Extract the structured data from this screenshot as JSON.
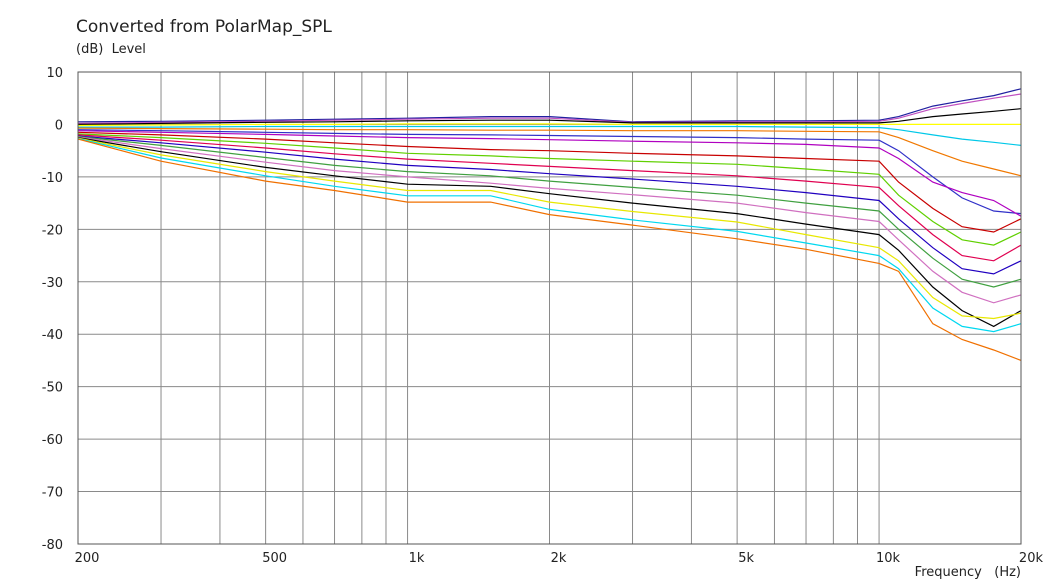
{
  "chart_data": {
    "type": "line",
    "title": "Converted from PolarMap_SPL",
    "ylabel_unit": "(dB)",
    "ylabel": "Level",
    "xlabel": "Frequency",
    "xlabel_unit": "(Hz)",
    "xscale": "log",
    "xlim": [
      200,
      20000
    ],
    "ylim": [
      -80,
      10
    ],
    "yticks": [
      10,
      0,
      -10,
      -20,
      -30,
      -40,
      -50,
      -60,
      -70,
      -80
    ],
    "yticklabels": [
      "10",
      "0",
      "-10",
      "-20",
      "-30",
      "-40",
      "-50",
      "-60",
      "-70",
      "-80"
    ],
    "xticks": [
      200,
      500,
      1000,
      2000,
      5000,
      10000,
      20000
    ],
    "xticklabels": [
      "200",
      "500",
      "1k",
      "2k",
      "5k",
      "10k",
      "20k"
    ],
    "xgrid_minor": [
      300,
      400,
      600,
      700,
      800,
      900,
      3000,
      4000,
      6000,
      7000,
      8000,
      9000
    ],
    "grid": true,
    "x": [
      200,
      300,
      500,
      700,
      1000,
      1500,
      2000,
      3000,
      5000,
      7000,
      10000,
      11000,
      13000,
      15000,
      17500,
      20000
    ],
    "series": [
      {
        "color": "#2020a0",
        "values": [
          0.5,
          0.6,
          0.8,
          1.0,
          1.2,
          1.5,
          1.5,
          0.5,
          0.7,
          0.7,
          0.8,
          1.5,
          3.5,
          4.5,
          5.5,
          6.8
        ]
      },
      {
        "color": "#c050c0",
        "values": [
          0.2,
          0.4,
          0.6,
          0.8,
          1.0,
          1.2,
          1.2,
          0.4,
          0.5,
          0.5,
          0.6,
          1.2,
          3.0,
          4.0,
          5.0,
          5.8
        ]
      },
      {
        "color": "#000000",
        "values": [
          0.0,
          0.2,
          0.4,
          0.5,
          0.7,
          0.8,
          0.8,
          0.3,
          0.3,
          0.3,
          0.3,
          0.6,
          1.5,
          2.0,
          2.5,
          3.0
        ]
      },
      {
        "color": "#ffff00",
        "values": [
          -0.2,
          -0.1,
          0.0,
          0.0,
          0.1,
          0.1,
          0.1,
          0.0,
          0.0,
          0.0,
          0.0,
          0.0,
          0.0,
          0.0,
          0.0,
          0.0
        ]
      },
      {
        "color": "#00c8e8",
        "values": [
          -0.5,
          -0.5,
          -0.4,
          -0.4,
          -0.4,
          -0.4,
          -0.4,
          -0.4,
          -0.4,
          -0.5,
          -0.6,
          -1.0,
          -2.0,
          -2.8,
          -3.4,
          -4.0
        ]
      },
      {
        "color": "#f07800",
        "values": [
          -0.7,
          -0.8,
          -0.9,
          -1.0,
          -1.0,
          -1.1,
          -1.1,
          -1.2,
          -1.2,
          -1.3,
          -1.4,
          -2.5,
          -5.0,
          -7.0,
          -8.5,
          -9.8
        ]
      },
      {
        "color": "#3030c8",
        "values": [
          -1.0,
          -1.2,
          -1.5,
          -1.7,
          -1.9,
          -2.0,
          -2.1,
          -2.3,
          -2.5,
          -2.8,
          -3.0,
          -5.0,
          -10.0,
          -14.0,
          -16.5,
          -17.0
        ]
      },
      {
        "color": "#b000c0",
        "values": [
          -1.2,
          -1.5,
          -1.9,
          -2.2,
          -2.5,
          -2.7,
          -2.9,
          -3.2,
          -3.5,
          -3.8,
          -4.5,
          -6.5,
          -11.0,
          -13.0,
          -14.5,
          -17.5
        ]
      },
      {
        "color": "#c80000",
        "values": [
          -1.5,
          -2.0,
          -2.8,
          -3.5,
          -4.2,
          -4.8,
          -5.0,
          -5.5,
          -6.0,
          -6.5,
          -7.0,
          -11.0,
          -16.0,
          -19.5,
          -20.5,
          -18.0
        ]
      },
      {
        "color": "#60d000",
        "values": [
          -1.8,
          -2.5,
          -3.6,
          -4.5,
          -5.5,
          -6.0,
          -6.5,
          -7.0,
          -7.6,
          -8.5,
          -9.5,
          -13.5,
          -18.5,
          -22.0,
          -23.0,
          -20.5
        ]
      },
      {
        "color": "#e00050",
        "values": [
          -2.0,
          -3.0,
          -4.5,
          -5.6,
          -6.6,
          -7.4,
          -8.0,
          -8.8,
          -9.8,
          -10.8,
          -12.0,
          -15.5,
          -21.0,
          -25.0,
          -26.0,
          -23.0
        ]
      },
      {
        "color": "#2000c0",
        "values": [
          -2.2,
          -3.5,
          -5.3,
          -6.6,
          -7.8,
          -8.6,
          -9.4,
          -10.4,
          -11.8,
          -13.0,
          -14.5,
          -18.0,
          -23.5,
          -27.5,
          -28.5,
          -26.0
        ]
      },
      {
        "color": "#40a040",
        "values": [
          -2.3,
          -4.0,
          -6.3,
          -7.8,
          -9.0,
          -9.8,
          -10.8,
          -12.0,
          -13.5,
          -15.0,
          -16.5,
          -20.0,
          -25.5,
          -29.5,
          -31.0,
          -29.5
        ]
      },
      {
        "color": "#d070c0",
        "values": [
          -2.4,
          -4.6,
          -7.2,
          -8.8,
          -10.0,
          -11.2,
          -12.2,
          -13.4,
          -15.0,
          -16.8,
          -18.5,
          -22.0,
          -28.0,
          -32.0,
          -34.0,
          -32.5
        ]
      },
      {
        "color": "#000000",
        "values": [
          -2.5,
          -5.2,
          -8.2,
          -9.8,
          -11.4,
          -11.8,
          -13.2,
          -15.0,
          -17.0,
          -19.0,
          -21.0,
          -24.0,
          -31.0,
          -35.5,
          -38.5,
          -35.5
        ]
      },
      {
        "color": "#e8e800",
        "values": [
          -2.6,
          -5.8,
          -9.0,
          -10.8,
          -12.6,
          -12.6,
          -14.8,
          -16.6,
          -18.6,
          -21.0,
          -23.5,
          -26.0,
          -33.0,
          -36.5,
          -37.0,
          -36.0
        ]
      },
      {
        "color": "#00d8f0",
        "values": [
          -2.7,
          -6.4,
          -9.8,
          -11.8,
          -13.6,
          -13.6,
          -16.2,
          -18.2,
          -20.4,
          -22.6,
          -25.0,
          -27.5,
          -35.0,
          -38.5,
          -39.5,
          -38.0
        ]
      },
      {
        "color": "#f07000",
        "values": [
          -2.8,
          -7.0,
          -10.8,
          -12.6,
          -14.8,
          -14.8,
          -17.2,
          -19.2,
          -21.8,
          -23.8,
          -26.5,
          -28.0,
          -38.0,
          -41.0,
          -43.0,
          -45.0
        ]
      }
    ]
  }
}
